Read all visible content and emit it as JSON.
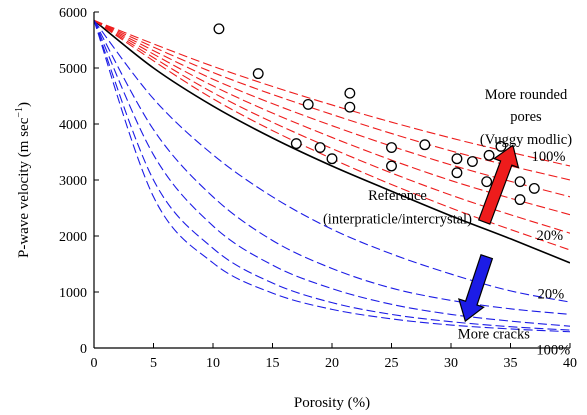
{
  "chart_data": {
    "type": "line",
    "xlabel": "Porosity (%)",
    "ylabel": "P-wave velocity (m sec",
    "ylabel_superscript": "−1",
    "ylabel_close": ")",
    "xlim": [
      0,
      40
    ],
    "ylim": [
      0,
      6000
    ],
    "x_ticks": [
      0,
      5,
      10,
      15,
      20,
      25,
      30,
      35,
      40
    ],
    "y_ticks": [
      0,
      1000,
      2000,
      3000,
      4000,
      5000,
      6000
    ],
    "grid": false,
    "colors": {
      "reference": "#000000",
      "rounded": "#ee1c1c",
      "cracks": "#1c1ce6",
      "points": "#000000"
    },
    "series": [
      {
        "group": "reference",
        "style": "solid",
        "x": [
          0,
          5,
          10,
          15,
          20,
          25,
          30,
          35,
          40
        ],
        "y": [
          5850,
          5000,
          4320,
          3750,
          3250,
          2800,
          2360,
          1950,
          1520
        ]
      },
      {
        "group": "rounded",
        "style": "dashed",
        "x": [
          0,
          10,
          20,
          30,
          40
        ],
        "y": [
          5850,
          4450,
          3380,
          2500,
          1750
        ]
      },
      {
        "group": "rounded",
        "style": "dashed",
        "x": [
          0,
          10,
          20,
          30,
          40
        ],
        "y": [
          5850,
          4560,
          3560,
          2730,
          2050
        ]
      },
      {
        "group": "rounded",
        "style": "dashed",
        "x": [
          0,
          10,
          20,
          30,
          40
        ],
        "y": [
          5850,
          4680,
          3760,
          2990,
          2380
        ]
      },
      {
        "group": "rounded",
        "style": "dashed",
        "x": [
          0,
          10,
          20,
          30,
          40
        ],
        "y": [
          5850,
          4800,
          3970,
          3270,
          2700
        ]
      },
      {
        "group": "rounded",
        "style": "dashed",
        "x": [
          0,
          10,
          20,
          30,
          40
        ],
        "y": [
          5850,
          4920,
          4170,
          3520,
          3000
        ]
      },
      {
        "group": "rounded",
        "style": "dashed",
        "x": [
          0,
          10,
          20,
          30,
          40
        ],
        "y": [
          5850,
          5030,
          4340,
          3750,
          3250
        ]
      },
      {
        "group": "cracks",
        "style": "dashed",
        "x": [
          0,
          5,
          10,
          15,
          20,
          25,
          30,
          35,
          40
        ],
        "y": [
          5850,
          4450,
          3450,
          2700,
          2120,
          1680,
          1320,
          1020,
          820
        ]
      },
      {
        "group": "cracks",
        "style": "dashed",
        "x": [
          0,
          5,
          10,
          15,
          20,
          25,
          30,
          35,
          40
        ],
        "y": [
          5850,
          3900,
          2700,
          1920,
          1420,
          1070,
          850,
          700,
          600
        ]
      },
      {
        "group": "cracks",
        "style": "dashed",
        "x": [
          0,
          5,
          10,
          15,
          20,
          25,
          30,
          35,
          40
        ],
        "y": [
          5850,
          3450,
          2180,
          1480,
          1060,
          780,
          600,
          480,
          390
        ]
      },
      {
        "group": "cracks",
        "style": "dashed",
        "x": [
          0,
          5,
          10,
          15,
          20,
          25,
          30,
          35,
          40
        ],
        "y": [
          5850,
          3000,
          1780,
          1160,
          810,
          600,
          470,
          380,
          320
        ]
      },
      {
        "group": "cracks",
        "style": "dashed",
        "x": [
          0,
          5,
          10,
          15,
          20,
          25,
          30,
          35,
          40
        ],
        "y": [
          5850,
          2700,
          1520,
          980,
          690,
          520,
          410,
          340,
          290
        ]
      }
    ],
    "points": [
      {
        "x": 10.5,
        "y": 5700
      },
      {
        "x": 13.8,
        "y": 4900
      },
      {
        "x": 18,
        "y": 4350
      },
      {
        "x": 21.5,
        "y": 4550
      },
      {
        "x": 21.5,
        "y": 4300
      },
      {
        "x": 17,
        "y": 3650
      },
      {
        "x": 19,
        "y": 3580
      },
      {
        "x": 20,
        "y": 3380
      },
      {
        "x": 25,
        "y": 3580
      },
      {
        "x": 25,
        "y": 3250
      },
      {
        "x": 27.8,
        "y": 3630
      },
      {
        "x": 30.5,
        "y": 3380
      },
      {
        "x": 30.5,
        "y": 3130
      },
      {
        "x": 31.8,
        "y": 3330
      },
      {
        "x": 33.2,
        "y": 3440
      },
      {
        "x": 33,
        "y": 2970
      },
      {
        "x": 34.2,
        "y": 3600
      },
      {
        "x": 35.8,
        "y": 2970
      },
      {
        "x": 35.8,
        "y": 2650
      },
      {
        "x": 37,
        "y": 2850
      }
    ],
    "arrows": [
      {
        "group": "rounded",
        "from": [
          32.8,
          2250
        ],
        "to": [
          35.2,
          3620
        ]
      },
      {
        "group": "cracks",
        "from": [
          33,
          1630
        ],
        "to": [
          31.2,
          480
        ]
      }
    ],
    "annotations": [
      {
        "id": "rounded-line1",
        "text": "More rounded",
        "x": 36.3,
        "y": 4450
      },
      {
        "id": "rounded-line2",
        "text": "pores",
        "x": 36.3,
        "y": 4050
      },
      {
        "id": "rounded-line3",
        "text": "(Vuggy modlic)",
        "x": 36.3,
        "y": 3640
      },
      {
        "id": "label-100-rounded",
        "text": "100%",
        "x": 38.2,
        "y": 3340
      },
      {
        "id": "reference-line1",
        "text": "Reference",
        "x": 25.5,
        "y": 2640
      },
      {
        "id": "reference-line2",
        "text": "(interpraticle/intercrystal)",
        "x": 25.5,
        "y": 2220
      },
      {
        "id": "label-20-rounded",
        "text": "20%",
        "x": 38.3,
        "y": 1930
      },
      {
        "id": "label-20-cracks",
        "text": "20%",
        "x": 38.4,
        "y": 880
      },
      {
        "id": "cracks-label",
        "text": "More cracks",
        "x": 33.6,
        "y": 170
      },
      {
        "id": "label-100-cracks",
        "text": "100%",
        "x": 38.6,
        "y": -120
      }
    ]
  }
}
